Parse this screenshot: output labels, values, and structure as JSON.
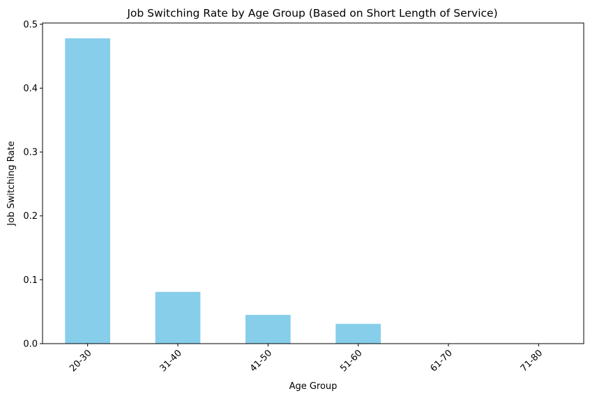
{
  "chart_data": {
    "type": "bar",
    "title": "Job Switching Rate by Age Group (Based on Short Length of Service)",
    "xlabel": "Age Group",
    "ylabel": "Job Switching Rate",
    "categories": [
      "20-30",
      "31-40",
      "41-50",
      "51-60",
      "61-70",
      "71-80"
    ],
    "values": [
      0.478,
      0.081,
      0.045,
      0.031,
      0.0,
      0.0
    ],
    "ylim": [
      0,
      0.502
    ],
    "yticks": [
      0.0,
      0.1,
      0.2,
      0.3,
      0.4,
      0.5
    ],
    "ytick_labels": [
      "0.0",
      "0.1",
      "0.2",
      "0.3",
      "0.4",
      "0.5"
    ],
    "bar_color": "#87CEEB",
    "grid": false,
    "legend": "none",
    "xtick_rotation": 45
  }
}
